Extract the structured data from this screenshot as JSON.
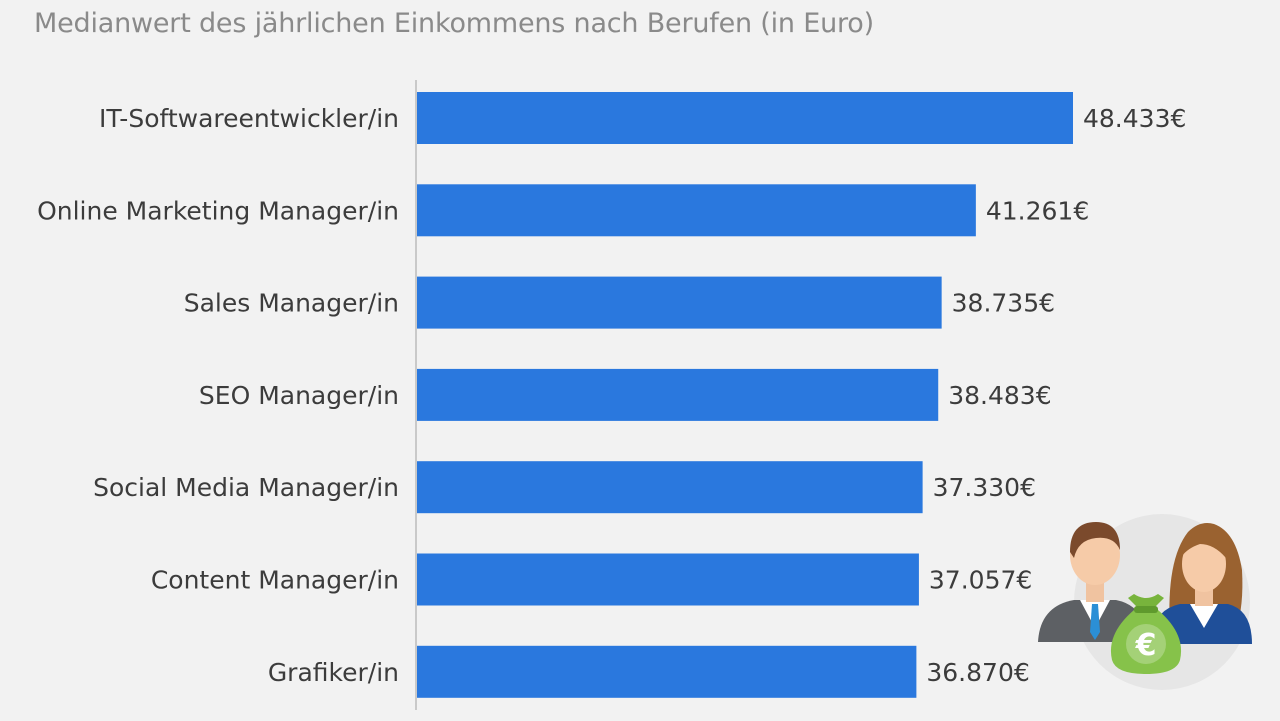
{
  "chart_data": {
    "type": "bar",
    "orientation": "horizontal",
    "title": "Medianwert des jährlichen Einkommens nach Berufen (in Euro)",
    "categories": [
      "IT-Softwareentwickler/in",
      "Online Marketing Manager/in",
      "Sales Manager/in",
      "SEO Manager/in",
      "Social Media Manager/in",
      "Content Manager/in",
      "Grafiker/in"
    ],
    "values": [
      48433,
      41261,
      38735,
      38483,
      37330,
      37057,
      36870
    ],
    "value_labels": [
      "48.433€",
      "41.261€",
      "38.735€",
      "38.483€",
      "37.330€",
      "37.057€",
      "36.870€"
    ],
    "xlim": [
      0,
      48433
    ],
    "bar_color": "#2a78de",
    "grid": false,
    "legend": "none"
  },
  "illustration": {
    "icon": "business-people-money-bag-icon",
    "bag_symbol": "€"
  }
}
